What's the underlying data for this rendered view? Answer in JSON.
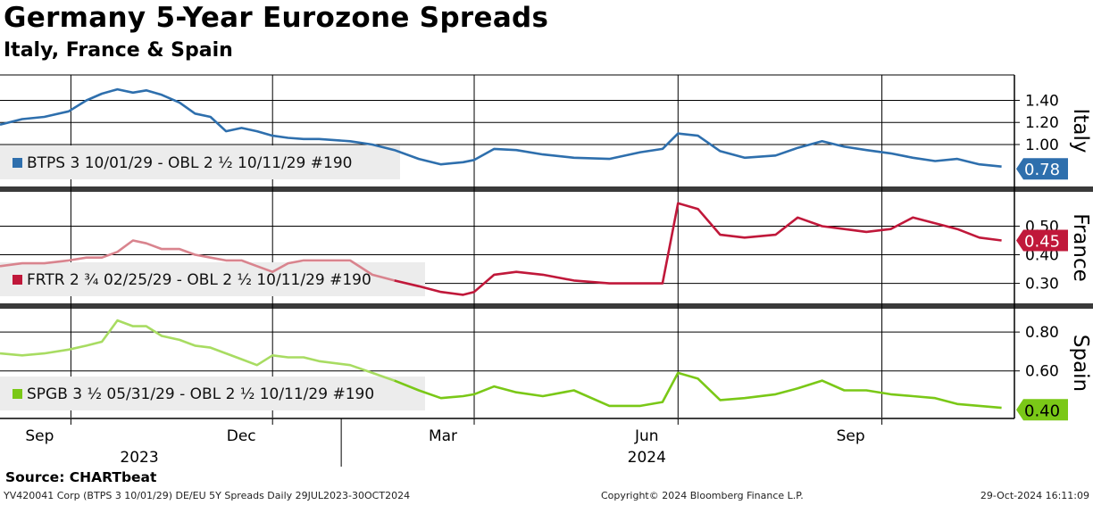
{
  "header": {
    "title": "Germany 5-Year Eurozone Spreads",
    "subtitle": "Italy, France & Spain"
  },
  "footer": {
    "source": "Source: CHARTbeat",
    "ticker_info": "YV420041 Corp (BTPS 3 10/01/29) DE/EU 5Y Spreads  Daily 29JUL2023-30OCT2024",
    "copyright": "Copyright© 2024 Bloomberg Finance L.P.",
    "timestamp": "29-Oct-2024 16:11:09"
  },
  "colors": {
    "italy": "#2e6fad",
    "france": "#c0183a",
    "france_faded": "#d9848e",
    "spain": "#7ac817",
    "spain_faded": "#a8dc62"
  },
  "chart_data": {
    "type": "line",
    "x_range": [
      "2023-07-31",
      "2024-10-30"
    ],
    "x_ticks": [
      {
        "label": "Sep",
        "date": "2023-09-01"
      },
      {
        "label": "Dec",
        "date": "2023-12-01"
      },
      {
        "label": "Mar",
        "date": "2024-03-01"
      },
      {
        "label": "Jun",
        "date": "2024-06-01"
      },
      {
        "label": "Sep",
        "date": "2024-09-01"
      }
    ],
    "year_labels": [
      {
        "label": "2023",
        "date": "2023-10-16"
      },
      {
        "label": "2024",
        "date": "2024-06-01"
      }
    ],
    "panels": [
      {
        "name": "Italy",
        "legend": "BTPS 3 10/01/29 - OBL 2 ½ 10/11/29 #190",
        "last_value": "0.78",
        "ylim": [
          0.62,
          1.63
        ],
        "y_ticks": [
          "1.00",
          "1.20",
          "1.40"
        ],
        "series": {
          "x": [
            "2023-07-31",
            "2023-08-10",
            "2023-08-20",
            "2023-08-31",
            "2023-09-08",
            "2023-09-15",
            "2023-09-22",
            "2023-09-29",
            "2023-10-05",
            "2023-10-12",
            "2023-10-20",
            "2023-10-27",
            "2023-11-03",
            "2023-11-10",
            "2023-11-17",
            "2023-11-24",
            "2023-12-01",
            "2023-12-08",
            "2023-12-15",
            "2023-12-22",
            "2024-01-05",
            "2024-01-15",
            "2024-01-25",
            "2024-02-05",
            "2024-02-15",
            "2024-02-25",
            "2024-03-01",
            "2024-03-10",
            "2024-03-20",
            "2024-04-01",
            "2024-04-15",
            "2024-05-01",
            "2024-05-15",
            "2024-05-25",
            "2024-06-01",
            "2024-06-10",
            "2024-06-20",
            "2024-07-01",
            "2024-07-15",
            "2024-07-25",
            "2024-08-05",
            "2024-08-15",
            "2024-08-25",
            "2024-09-05",
            "2024-09-15",
            "2024-09-25",
            "2024-10-05",
            "2024-10-15",
            "2024-10-25"
          ],
          "y": [
            1.18,
            1.23,
            1.25,
            1.3,
            1.4,
            1.46,
            1.5,
            1.47,
            1.49,
            1.45,
            1.38,
            1.28,
            1.25,
            1.12,
            1.15,
            1.12,
            1.08,
            1.06,
            1.05,
            1.05,
            1.03,
            1.0,
            0.95,
            0.87,
            0.82,
            0.84,
            0.86,
            0.96,
            0.95,
            0.91,
            0.88,
            0.87,
            0.93,
            0.96,
            1.1,
            1.08,
            0.94,
            0.88,
            0.9,
            0.97,
            1.03,
            0.98,
            0.95,
            0.92,
            0.88,
            0.85,
            0.87,
            0.82,
            0.8
          ]
        }
      },
      {
        "name": "France",
        "legend": "FRTR 2 ¾ 02/25/29 - OBL 2 ½ 10/11/29 #190",
        "last_value": "0.45",
        "ylim": [
          0.23,
          0.62
        ],
        "y_ticks": [
          "0.30",
          "0.40",
          "0.50"
        ],
        "series": {
          "x": [
            "2023-07-31",
            "2023-08-10",
            "2023-08-20",
            "2023-08-31",
            "2023-09-08",
            "2023-09-15",
            "2023-09-22",
            "2023-09-29",
            "2023-10-05",
            "2023-10-12",
            "2023-10-20",
            "2023-10-27",
            "2023-11-03",
            "2023-11-10",
            "2023-11-17",
            "2023-11-24",
            "2023-12-01",
            "2023-12-08",
            "2023-12-15",
            "2023-12-22",
            "2024-01-05",
            "2024-01-15",
            "2024-01-25",
            "2024-02-05",
            "2024-02-15",
            "2024-02-25",
            "2024-03-01",
            "2024-03-10",
            "2024-03-20",
            "2024-04-01",
            "2024-04-15",
            "2024-05-01",
            "2024-05-15",
            "2024-05-25",
            "2024-06-01",
            "2024-06-10",
            "2024-06-20",
            "2024-07-01",
            "2024-07-15",
            "2024-07-25",
            "2024-08-05",
            "2024-08-15",
            "2024-08-25",
            "2024-09-05",
            "2024-09-15",
            "2024-09-25",
            "2024-10-05",
            "2024-10-15",
            "2024-10-25"
          ],
          "y": [
            0.36,
            0.37,
            0.37,
            0.38,
            0.39,
            0.39,
            0.41,
            0.45,
            0.44,
            0.42,
            0.42,
            0.4,
            0.39,
            0.38,
            0.38,
            0.36,
            0.34,
            0.37,
            0.38,
            0.38,
            0.38,
            0.33,
            0.31,
            0.29,
            0.27,
            0.26,
            0.27,
            0.33,
            0.34,
            0.33,
            0.31,
            0.3,
            0.3,
            0.3,
            0.58,
            0.56,
            0.47,
            0.46,
            0.47,
            0.53,
            0.5,
            0.49,
            0.48,
            0.49,
            0.53,
            0.51,
            0.49,
            0.46,
            0.45
          ]
        }
      },
      {
        "name": "Spain",
        "legend": "SPGB 3 ½ 05/31/29 - OBL 2 ½ 10/11/29 #190",
        "last_value": "0.40",
        "ylim": [
          0.36,
          0.92
        ],
        "y_ticks": [
          "0.60",
          "0.80"
        ],
        "series": {
          "x": [
            "2023-07-31",
            "2023-08-10",
            "2023-08-20",
            "2023-08-31",
            "2023-09-08",
            "2023-09-15",
            "2023-09-22",
            "2023-09-29",
            "2023-10-05",
            "2023-10-12",
            "2023-10-20",
            "2023-10-27",
            "2023-11-03",
            "2023-11-10",
            "2023-11-17",
            "2023-11-24",
            "2023-12-01",
            "2023-12-08",
            "2023-12-15",
            "2023-12-22",
            "2024-01-05",
            "2024-01-15",
            "2024-01-25",
            "2024-02-05",
            "2024-02-15",
            "2024-02-25",
            "2024-03-01",
            "2024-03-10",
            "2024-03-20",
            "2024-04-01",
            "2024-04-15",
            "2024-05-01",
            "2024-05-15",
            "2024-05-25",
            "2024-06-01",
            "2024-06-10",
            "2024-06-20",
            "2024-07-01",
            "2024-07-15",
            "2024-07-25",
            "2024-08-05",
            "2024-08-15",
            "2024-08-25",
            "2024-09-05",
            "2024-09-15",
            "2024-09-25",
            "2024-10-05",
            "2024-10-15",
            "2024-10-25"
          ],
          "y": [
            0.69,
            0.68,
            0.69,
            0.71,
            0.73,
            0.75,
            0.86,
            0.83,
            0.83,
            0.78,
            0.76,
            0.73,
            0.72,
            0.69,
            0.66,
            0.63,
            0.68,
            0.67,
            0.67,
            0.65,
            0.63,
            0.59,
            0.55,
            0.5,
            0.46,
            0.47,
            0.48,
            0.52,
            0.49,
            0.47,
            0.5,
            0.42,
            0.42,
            0.44,
            0.59,
            0.56,
            0.45,
            0.46,
            0.48,
            0.51,
            0.55,
            0.5,
            0.5,
            0.48,
            0.47,
            0.46,
            0.43,
            0.42,
            0.41
          ]
        }
      }
    ]
  }
}
